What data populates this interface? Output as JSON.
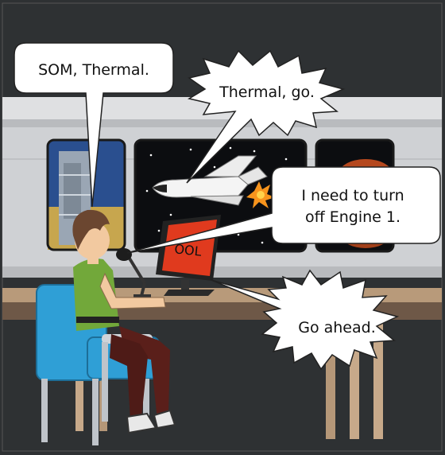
{
  "comic": {
    "dialogue": [
      {
        "id": "som",
        "text": "SOM, Thermal."
      },
      {
        "id": "thermal-go",
        "text": "Thermal, go."
      },
      {
        "id": "engine-line1",
        "text": "I need to turn"
      },
      {
        "id": "engine-line2",
        "text": "off Engine 1."
      },
      {
        "id": "go-ahead",
        "text": "Go ahead."
      }
    ],
    "monitor_text": "OOL"
  },
  "colors": {
    "background": "#2e3133",
    "wall": "#d0d1d3",
    "desk": "#b89a7a",
    "chair": "#2f9fd6",
    "shirt": "#72a83a",
    "monitor": "#e03a1e"
  }
}
